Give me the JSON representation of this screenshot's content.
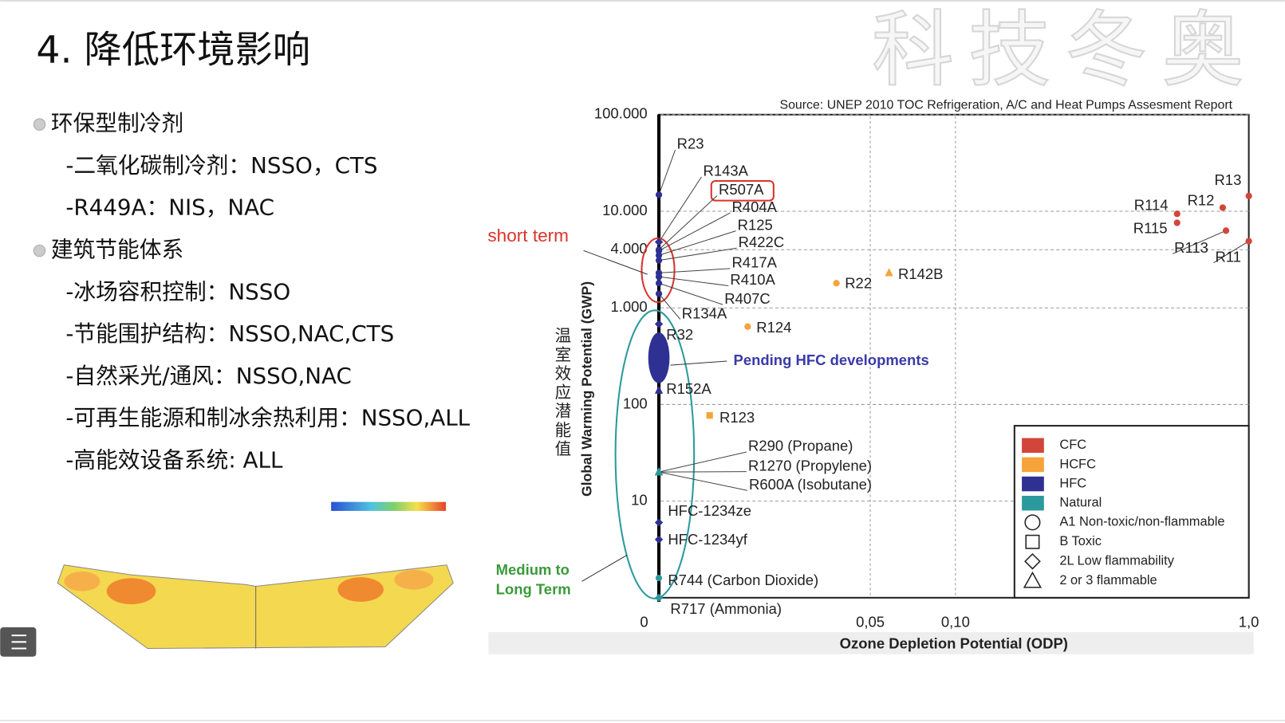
{
  "slide": {
    "title": "4. 降低环境影响",
    "watermark": "科技冬奥",
    "bullets": [
      {
        "text": "环保型制冷剂",
        "items": [
          "-二氧化碳制冷剂：NSSO，CTS",
          "-R449A：NIS，NAC"
        ]
      },
      {
        "text": "建筑节能体系",
        "items": [
          "-冰场容积控制：NSSO",
          "-节能围护结构：NSSO,NAC,CTS",
          "-自然采光/通风：NSSO,NAC",
          "-可再生能源和制冰余热利用：NSSO,ALL",
          "-高能效设备系统: ALL"
        ]
      }
    ]
  },
  "chart_data": {
    "type": "scatter",
    "source": "Source: UNEP 2010 TOC Refrigeration, A/C and Heat Pumps Assesment Report",
    "y_label": "Global Warming Potential (GWP)",
    "y_label_cn": "温室效应潜能值",
    "x_label": "Ozone Depletion Potential (ODP)",
    "ylog": true,
    "ylim": [
      1,
      100000
    ],
    "yticks": [
      {
        "value": 100000,
        "label": "100.000"
      },
      {
        "value": 10000,
        "label": "10.000"
      },
      {
        "value": 4000,
        "label": "4.000"
      },
      {
        "value": 1000,
        "label": "1.000"
      },
      100,
      10
    ],
    "xlim": [
      0,
      1
    ],
    "xticks": [
      0,
      {
        "value": 0.05,
        "label": "0,05"
      },
      {
        "value": 0.1,
        "label": "0,10"
      },
      {
        "value": 1,
        "label": "1,0"
      }
    ],
    "grid": true,
    "annotations": [
      "short term",
      "Medium to",
      "Long Term",
      "Pending HFC developments"
    ],
    "series": [
      {
        "name": "CFC",
        "color": "#d2463a"
      },
      {
        "name": "HCFC",
        "color": "#f5a33a"
      },
      {
        "name": "HFC",
        "color": "#2e3192"
      },
      {
        "name": "Natural",
        "color": "#2b9a9c"
      }
    ],
    "markers": [
      {
        "name": "A1 Non-toxic/non-flammable",
        "shape": "circle"
      },
      {
        "name": "B Toxic",
        "shape": "square"
      },
      {
        "name": "2L Low flammability",
        "shape": "diamond"
      },
      {
        "name": "2 or 3 flammable",
        "shape": "triangle"
      }
    ],
    "points": [
      {
        "label": "R23",
        "x": 0,
        "y": 14800,
        "series": 2,
        "marker": 0
      },
      {
        "label": "R143A",
        "x": 0,
        "y": 4800,
        "series": 2,
        "marker": 2
      },
      {
        "label": "R507A",
        "x": 0,
        "y": 4000,
        "series": 2,
        "marker": 0
      },
      {
        "label": "R404A",
        "x": 0,
        "y": 3900,
        "series": 2,
        "marker": 0
      },
      {
        "label": "R125",
        "x": 0,
        "y": 3500,
        "series": 2,
        "marker": 0
      },
      {
        "label": "R422C",
        "x": 0,
        "y": 3100,
        "series": 2,
        "marker": 0
      },
      {
        "label": "R417A",
        "x": 0,
        "y": 2300,
        "series": 2,
        "marker": 0
      },
      {
        "label": "R410A",
        "x": 0,
        "y": 2100,
        "series": 2,
        "marker": 0
      },
      {
        "label": "R407C",
        "x": 0,
        "y": 1800,
        "series": 2,
        "marker": 0
      },
      {
        "label": "R134A",
        "x": 0,
        "y": 1400,
        "series": 2,
        "marker": 0
      },
      {
        "label": "R32",
        "x": 0,
        "y": 680,
        "series": 2,
        "marker": 2
      },
      {
        "label": "R152A",
        "x": 0,
        "y": 140,
        "series": 2,
        "marker": 3
      },
      {
        "label": "R290 (Propane)",
        "x": 0,
        "y": 20,
        "series": 3,
        "marker": 3
      },
      {
        "label": "R1270 (Propylene)",
        "x": 0,
        "y": 20,
        "series": 3,
        "marker": 3
      },
      {
        "label": "R600A (Isobutane)",
        "x": 0,
        "y": 20,
        "series": 3,
        "marker": 3
      },
      {
        "label": "HFC-1234ze",
        "x": 0,
        "y": 6,
        "series": 2,
        "marker": 2
      },
      {
        "label": "HFC-1234yf",
        "x": 0,
        "y": 4,
        "series": 2,
        "marker": 2
      },
      {
        "label": "R744 (Carbon Dioxide)",
        "x": 0,
        "y": 1.6,
        "series": 3,
        "marker": 0
      },
      {
        "label": "R717 (Ammonia)",
        "x": 0,
        "y": 1,
        "series": 3,
        "marker": 2
      },
      {
        "label": "R13",
        "x": 1,
        "y": 14400,
        "series": 0,
        "marker": 0
      },
      {
        "label": "R12",
        "x": 0.92,
        "y": 10900,
        "series": 0,
        "marker": 0
      },
      {
        "label": "R114",
        "x": 0.78,
        "y": 9400,
        "series": 0,
        "marker": 0
      },
      {
        "label": "R115",
        "x": 0.78,
        "y": 7600,
        "series": 0,
        "marker": 0
      },
      {
        "label": "R113",
        "x": 0.93,
        "y": 6300,
        "series": 0,
        "marker": 0
      },
      {
        "label": "R11",
        "x": 1,
        "y": 4900,
        "series": 0,
        "marker": 0
      },
      {
        "label": "R22",
        "x": 0.042,
        "y": 1800,
        "series": 1,
        "marker": 0
      },
      {
        "label": "R142B",
        "x": 0.061,
        "y": 2300,
        "series": 1,
        "marker": 3
      },
      {
        "label": "R124",
        "x": 0.021,
        "y": 640,
        "series": 1,
        "marker": 0
      },
      {
        "label": "R123",
        "x": 0.012,
        "y": 77,
        "series": 1,
        "marker": 1
      }
    ]
  }
}
